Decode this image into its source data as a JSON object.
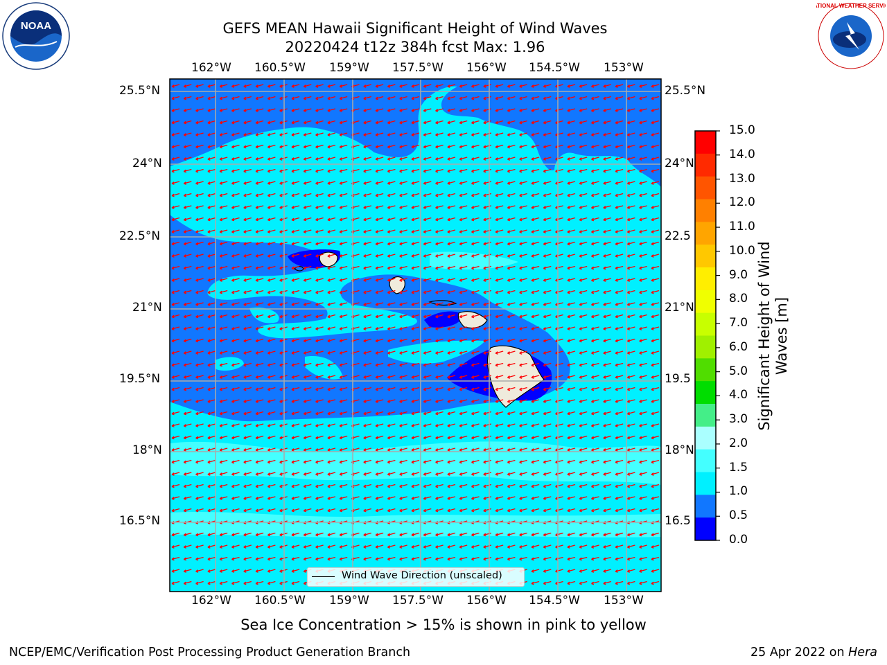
{
  "title": "GEFS MEAN Hawaii Significant Height of Wind Waves",
  "subtitle": "20220424 t12z 384h fcst   Max: 1.96",
  "lon_labels": [
    "162°W",
    "160.5°W",
    "159°W",
    "157.5°W",
    "156°W",
    "154.5°W",
    "153°W"
  ],
  "lat_labels": [
    "25.5°N",
    "24°N",
    "22.5°N",
    "21°N",
    "19.5°N",
    "18°N",
    "16.5°N"
  ],
  "lat_labels_right": [
    "25.5°N",
    "24°N",
    "22.5",
    "21°N",
    "19.5",
    "18°N",
    "16.5"
  ],
  "legend_label": "Wind Wave Direction (unscaled)",
  "colorbar": {
    "label": "Significant Height of Wind Waves [m]",
    "label_line1": "Significant Height of Wind",
    "label_line2": "Waves [m]",
    "ticks": [
      "15.0",
      "14.0",
      "13.0",
      "12.0",
      "11.0",
      "10.0",
      "9.0",
      "8.0",
      "7.0",
      "6.0",
      "5.0",
      "4.0",
      "3.0",
      "2.0",
      "1.5",
      "1.0",
      "0.5",
      "0.0"
    ],
    "colors": [
      "#ff0000",
      "#ff2a00",
      "#ff5500",
      "#ff8000",
      "#ffa500",
      "#ffc800",
      "#ffee00",
      "#f0ff00",
      "#c8ff00",
      "#a0f000",
      "#50dd00",
      "#00dd00",
      "#44ee88",
      "#aaffff",
      "#44ffff",
      "#00f0ff",
      "#1177ff",
      "#0000ff"
    ]
  },
  "bottom_note": "Sea Ice Concentration > 15% is shown in pink to yellow",
  "footer_left": "NCEP/EMC/Verification Post Processing Product Generation Branch",
  "footer_right_prefix": "25 Apr 2022 on ",
  "footer_right_host": "Hera",
  "logos": {
    "noaa": "NOAA",
    "nws_text": "NATIONAL WEATHER SERVICE"
  },
  "colors": {
    "sea_low": "#1177ff",
    "sea_mid": "#00f0ff",
    "sea_mid2": "#44ffff",
    "sea_high": "#aaffff",
    "sea_vlow": "#0000ff",
    "land": "#efebdc",
    "arrow": "#ff0000"
  }
}
